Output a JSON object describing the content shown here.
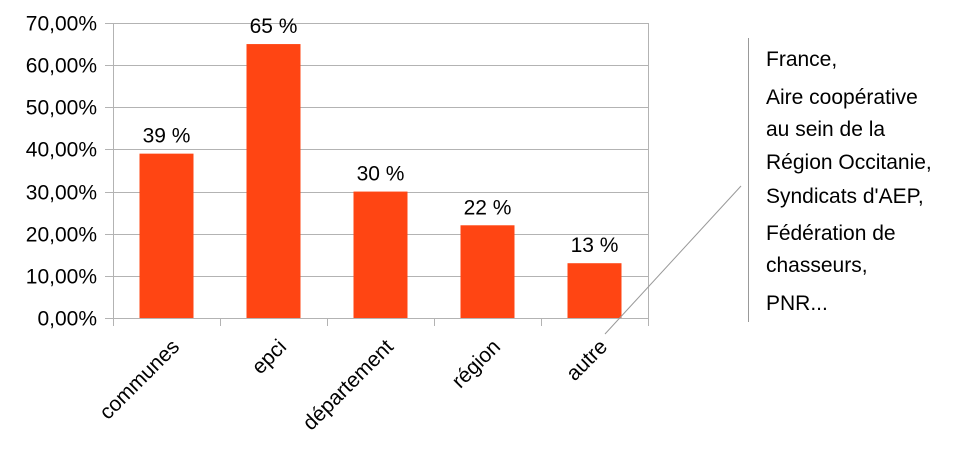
{
  "chart_data": {
    "type": "bar",
    "categories": [
      "communes",
      "epci",
      "département",
      "région",
      "autre"
    ],
    "values": [
      39,
      65,
      30,
      22,
      13
    ],
    "data_labels": [
      "39 %",
      "65 %",
      "30 %",
      "22 %",
      "13 %"
    ],
    "ylim": [
      0,
      70
    ],
    "yticks": [
      0,
      10,
      20,
      30,
      40,
      50,
      60,
      70
    ],
    "ytick_labels": [
      "0,00%",
      "10,00%",
      "20,00%",
      "30,00%",
      "40,00%",
      "50,00%",
      "60,00%",
      "70,00%"
    ],
    "bar_color": "#ff4513",
    "grid": true,
    "title": "",
    "xlabel": "",
    "ylabel": "",
    "annotation": {
      "target_category": "autre",
      "lines": [
        "France,",
        "Aire coopérative",
        "au sein de la",
        "Région Occitanie,",
        "Syndicats d'AEP,",
        "Fédération de",
        "chasseurs,",
        "PNR..."
      ]
    }
  }
}
